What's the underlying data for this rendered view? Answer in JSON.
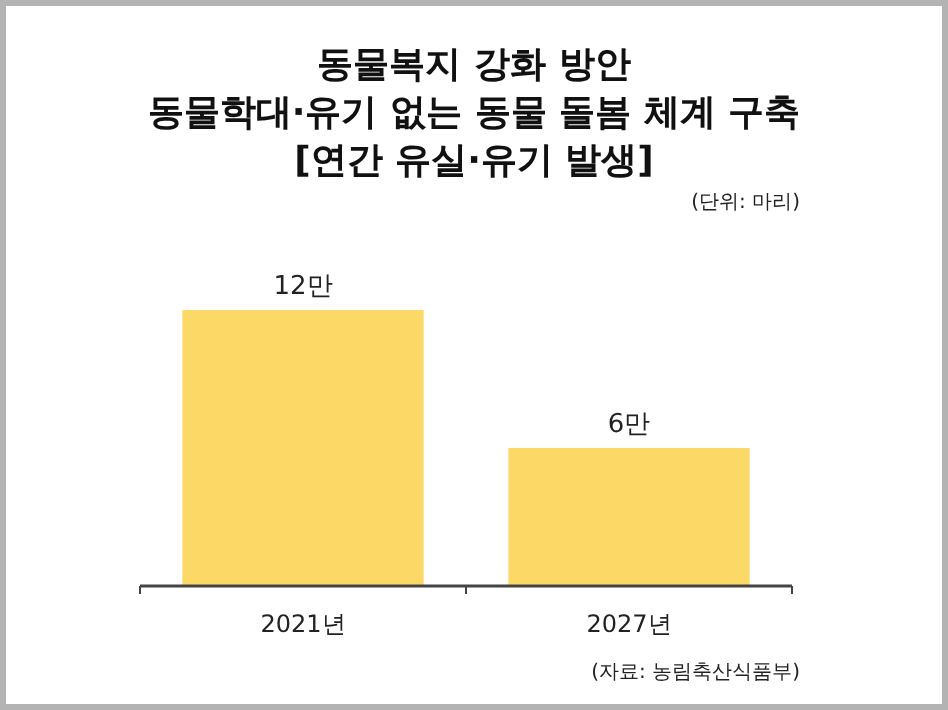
{
  "chart_data": {
    "type": "bar",
    "title": "동물복지 강화 방안\n동물학대·유기 없는 동물 돌봄 체계 구축\n[연간 유실·유기 발생]",
    "subtitle": "(단위: 마리)",
    "categories": [
      "2021년",
      "2027년"
    ],
    "values": [
      12,
      6
    ],
    "value_labels": [
      "12만",
      "6만"
    ],
    "color": "#fcd867",
    "annotations": [
      "(자료: 농림축산식품부)"
    ]
  }
}
